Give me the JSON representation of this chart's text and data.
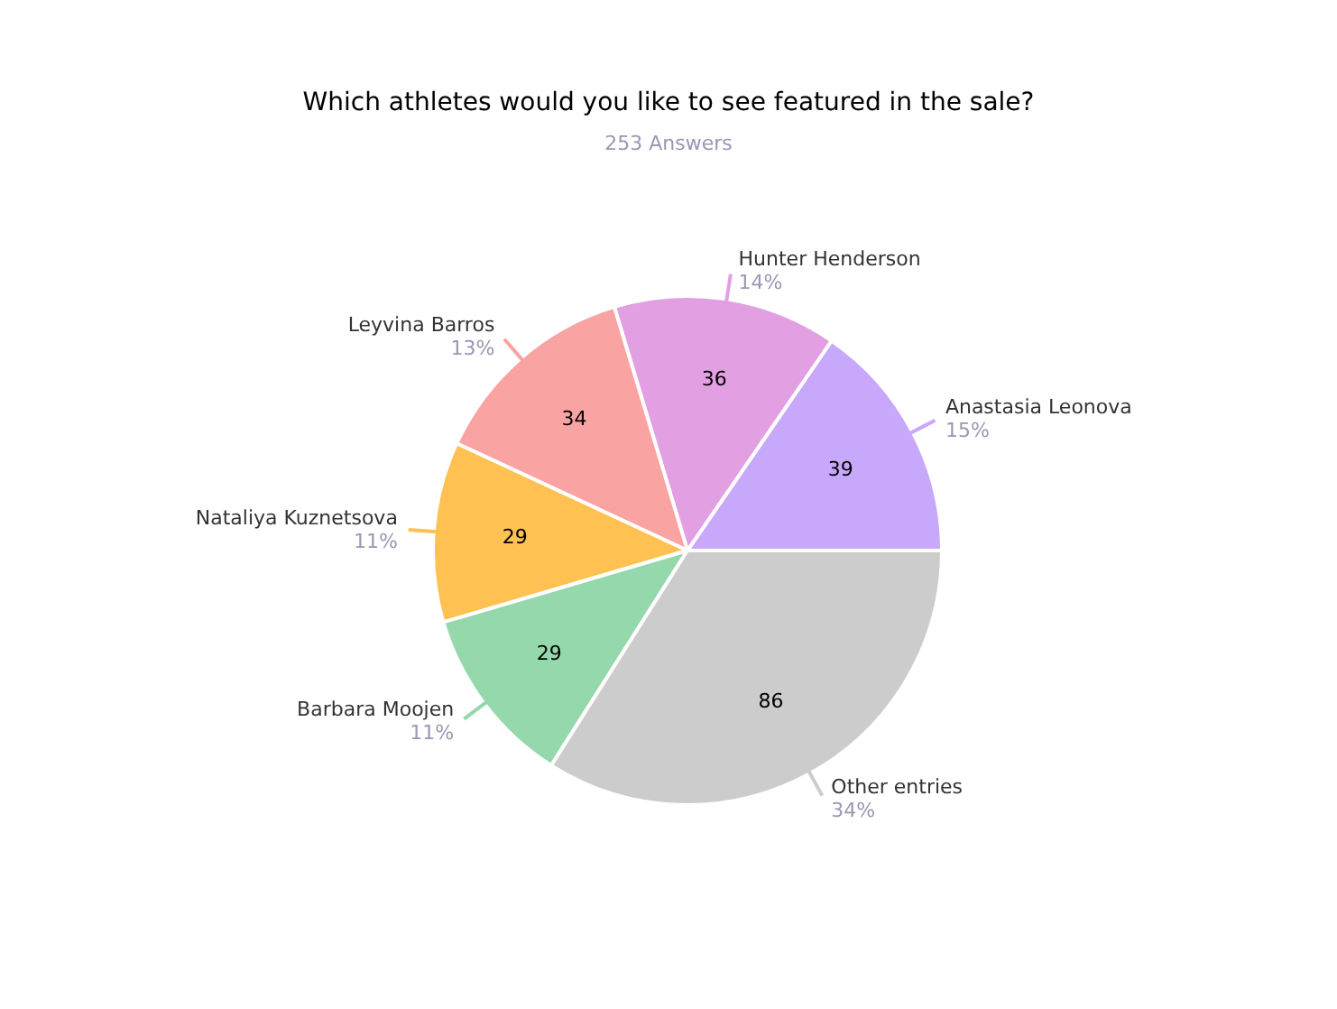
{
  "chart_data": {
    "type": "pie",
    "title": "Which athletes would you like to see featured in the sale?",
    "subtitle": "253 Answers",
    "categories": [
      "Anastasia Leonova",
      "Hunter Henderson",
      "Leyvina Barros",
      "Nataliya Kuznetsova",
      "Barbara Moojen",
      "Other entries"
    ],
    "values": [
      39,
      36,
      34,
      29,
      29,
      86
    ],
    "colors": [
      "#c8a8fa",
      "#e2a0e2",
      "#faa3a3",
      "#ffc152",
      "#95d8ab",
      "#cccccc"
    ],
    "annotations": [
      "15%",
      "14%",
      "13%",
      "11%",
      "11%",
      "34%"
    ],
    "data_labels": true
  }
}
